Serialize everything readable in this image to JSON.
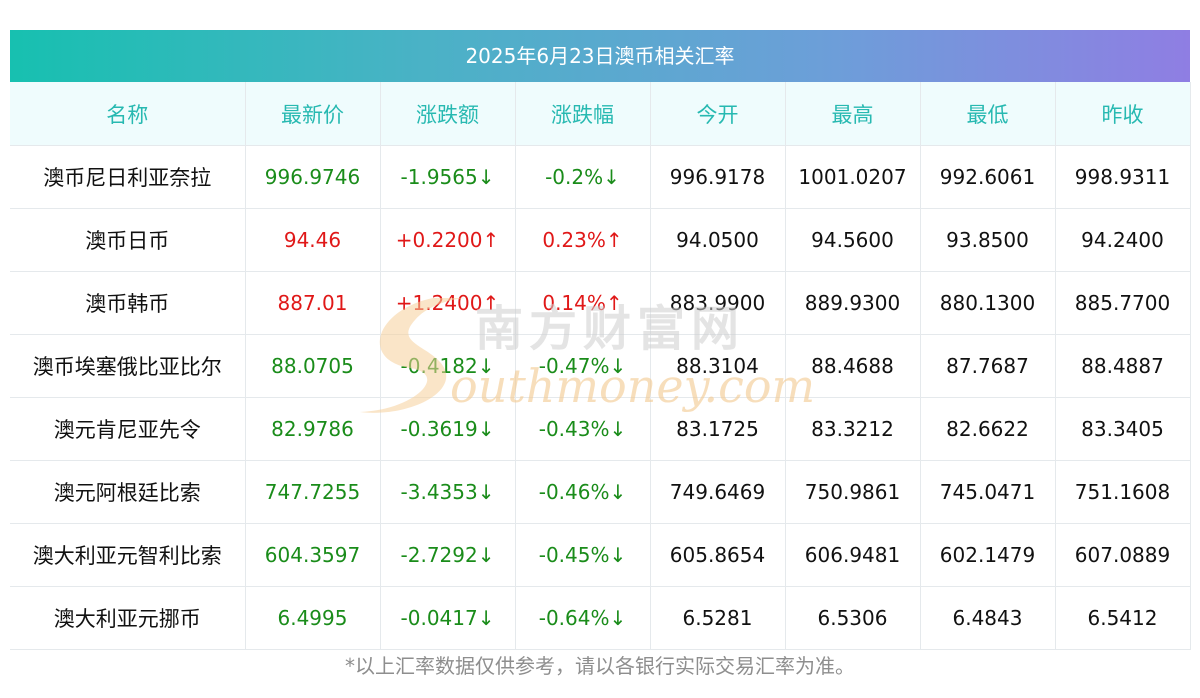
{
  "title": "2025年6月23日澳币相关汇率",
  "headers": [
    "名称",
    "最新价",
    "涨跌额",
    "涨跌幅",
    "今开",
    "最高",
    "最低",
    "昨收"
  ],
  "rows": [
    {
      "name": "澳币尼日利亚奈拉",
      "latest": "996.9746",
      "change": "-1.9565↓",
      "pct": "-0.2%↓",
      "open": "996.9178",
      "high": "1001.0207",
      "low": "992.6061",
      "prev": "998.9311",
      "dir": "down"
    },
    {
      "name": "澳币日币",
      "latest": "94.46",
      "change": "+0.2200↑",
      "pct": "0.23%↑",
      "open": "94.0500",
      "high": "94.5600",
      "low": "93.8500",
      "prev": "94.2400",
      "dir": "up"
    },
    {
      "name": "澳币韩币",
      "latest": "887.01",
      "change": "+1.2400↑",
      "pct": "0.14%↑",
      "open": "883.9900",
      "high": "889.9300",
      "low": "880.1300",
      "prev": "885.7700",
      "dir": "up"
    },
    {
      "name": "澳币埃塞俄比亚比尔",
      "latest": "88.0705",
      "change": "-0.4182↓",
      "pct": "-0.47%↓",
      "open": "88.3104",
      "high": "88.4688",
      "low": "87.7687",
      "prev": "88.4887",
      "dir": "down"
    },
    {
      "name": "澳元肯尼亚先令",
      "latest": "82.9786",
      "change": "-0.3619↓",
      "pct": "-0.43%↓",
      "open": "83.1725",
      "high": "83.3212",
      "low": "82.6622",
      "prev": "83.3405",
      "dir": "down"
    },
    {
      "name": "澳元阿根廷比索",
      "latest": "747.7255",
      "change": "-3.4353↓",
      "pct": "-0.46%↓",
      "open": "749.6469",
      "high": "750.9861",
      "low": "745.0471",
      "prev": "751.1608",
      "dir": "down"
    },
    {
      "name": "澳大利亚元智利比索",
      "latest": "604.3597",
      "change": "-2.7292↓",
      "pct": "-0.45%↓",
      "open": "605.8654",
      "high": "606.9481",
      "low": "602.1479",
      "prev": "607.0889",
      "dir": "down"
    },
    {
      "name": "澳大利亚元挪币",
      "latest": "6.4995",
      "change": "-0.0417↓",
      "pct": "-0.64%↓",
      "open": "6.5281",
      "high": "6.5306",
      "low": "6.4843",
      "prev": "6.5412",
      "dir": "down"
    }
  ],
  "watermark": {
    "cn": "南方财富网",
    "en": "outhmoney.com"
  },
  "footnote": "*以上汇率数据仅供参考，请以各银行实际交易汇率为准。",
  "colors": {
    "up": "#e01818",
    "down": "#1a8c1a",
    "header_text": "#27b9b1",
    "header_bg": "#effcfd"
  }
}
